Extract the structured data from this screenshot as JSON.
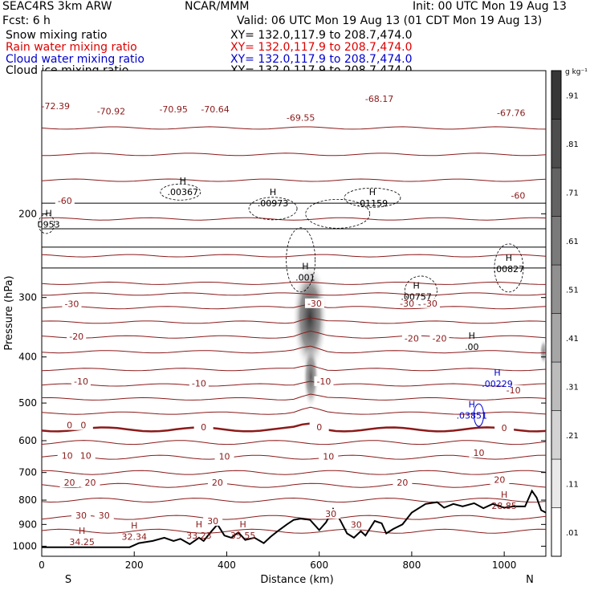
{
  "header": {
    "left_line1": "SEAC4RS   3km ARW",
    "left_line2": "Fcst:     6 h",
    "center": "NCAR/MMM",
    "init": "Init: 00 UTC Mon 19 Aug 13",
    "valid": "Valid: 06 UTC Mon 19 Aug 13 (01 CDT Mon 19 Aug 13)",
    "fields": [
      {
        "name": "Snow mixing ratio",
        "xy": "XY=  132.0,117.9 to 208.7,474.0",
        "color": "#000000"
      },
      {
        "name": "Rain water mixing ratio",
        "xy": "XY=  132.0,117.9 to 208.7,474.0",
        "color": "#dd0000"
      },
      {
        "name": "Cloud water mixing ratio",
        "xy": "XY=  132.0,117.9 to 208.7,474.0",
        "color": "#0000cc"
      },
      {
        "name": "Cloud ice mixing ratio",
        "xy": "XY=  132.0,117.9 to 208.7,474.0",
        "color": "#000000"
      }
    ]
  },
  "chart_data": {
    "type": "cross-section",
    "xlabel": "Distance (km)",
    "ylabel": "Pressure (hPa)",
    "xlim": [
      0,
      1090
    ],
    "ylim": [
      1050,
      100
    ],
    "x_ticks": [
      0,
      200,
      400,
      600,
      800,
      1000
    ],
    "y_ticks": [
      1000,
      900,
      800,
      700,
      600,
      500,
      400,
      300,
      200
    ],
    "x_ends": {
      "left": "S",
      "right": "N"
    },
    "shading": {
      "units": "g kg⁻¹",
      "levels": [
        ".01",
        ".11",
        ".21",
        ".31",
        ".41",
        ".51",
        ".61",
        ".71",
        ".81",
        ".91"
      ]
    },
    "temperature_labels": [
      {
        "text": "-72.39",
        "x": 30,
        "p": 120
      },
      {
        "text": "-70.92",
        "x": 150,
        "p": 123
      },
      {
        "text": "-70.95",
        "x": 285,
        "p": 122
      },
      {
        "text": "-70.64",
        "x": 375,
        "p": 122
      },
      {
        "text": "-69.55",
        "x": 560,
        "p": 127
      },
      {
        "text": "-68.17",
        "x": 730,
        "p": 116
      },
      {
        "text": "-67.76",
        "x": 1015,
        "p": 124
      },
      {
        "text": "-60",
        "x": 50,
        "p": 190
      },
      {
        "text": "-60",
        "x": 1030,
        "p": 185
      },
      {
        "text": "-30",
        "x": 65,
        "p": 313
      },
      {
        "text": "-30",
        "x": 590,
        "p": 312
      },
      {
        "text": "-30",
        "x": 790,
        "p": 312
      },
      {
        "text": "-30",
        "x": 840,
        "p": 312
      },
      {
        "text": "-20",
        "x": 75,
        "p": 366
      },
      {
        "text": "-20",
        "x": 800,
        "p": 370
      },
      {
        "text": "-20",
        "x": 860,
        "p": 370
      },
      {
        "text": "-10",
        "x": 85,
        "p": 455
      },
      {
        "text": "-10",
        "x": 340,
        "p": 460
      },
      {
        "text": "-10",
        "x": 610,
        "p": 455
      },
      {
        "text": "-10",
        "x": 1020,
        "p": 475
      },
      {
        "text": "0",
        "x": 60,
        "p": 563
      },
      {
        "text": "0",
        "x": 90,
        "p": 563
      },
      {
        "text": "0",
        "x": 350,
        "p": 568
      },
      {
        "text": "0",
        "x": 600,
        "p": 568
      },
      {
        "text": "0",
        "x": 1000,
        "p": 570
      },
      {
        "text": "10",
        "x": 55,
        "p": 652
      },
      {
        "text": "10",
        "x": 95,
        "p": 652
      },
      {
        "text": "10",
        "x": 395,
        "p": 655
      },
      {
        "text": "10",
        "x": 620,
        "p": 655
      },
      {
        "text": "10",
        "x": 945,
        "p": 643
      },
      {
        "text": "20",
        "x": 60,
        "p": 743
      },
      {
        "text": "20",
        "x": 105,
        "p": 743
      },
      {
        "text": "20",
        "x": 380,
        "p": 743
      },
      {
        "text": "20",
        "x": 780,
        "p": 743
      },
      {
        "text": "20",
        "x": 990,
        "p": 733
      },
      {
        "text": "30",
        "x": 85,
        "p": 872
      },
      {
        "text": "30",
        "x": 135,
        "p": 872
      },
      {
        "text": "30",
        "x": 370,
        "p": 895
      },
      {
        "text": "30",
        "x": 625,
        "p": 865
      },
      {
        "text": "30",
        "x": 680,
        "p": 912
      }
    ],
    "temperature_max_labels": [
      {
        "text": "34.25",
        "x": 87,
        "p": 990
      },
      {
        "text": "32.34",
        "x": 200,
        "p": 965
      },
      {
        "text": "33.23",
        "x": 340,
        "p": 960
      },
      {
        "text": "35.55",
        "x": 435,
        "p": 960
      },
      {
        "text": "28.85",
        "x": 1000,
        "p": 832
      }
    ],
    "ice_maxima": [
      {
        "text": ".00367",
        "x": 305,
        "p": 182
      },
      {
        "text": ".00973",
        "x": 500,
        "p": 192
      },
      {
        "text": ".01159",
        "x": 715,
        "p": 192
      },
      {
        "text": ".001",
        "x": 570,
        "p": 275
      },
      {
        "text": ".00757",
        "x": 810,
        "p": 302
      },
      {
        "text": ".00827",
        "x": 1010,
        "p": 264
      },
      {
        "text": ".00",
        "x": 930,
        "p": 385
      },
      {
        "text": "0953",
        "x": 15,
        "p": 213
      }
    ],
    "cloud_water_maxima": [
      {
        "text": ".00229",
        "x": 985,
        "p": 461
      },
      {
        "text": ".03851",
        "x": 930,
        "p": 537
      }
    ]
  }
}
